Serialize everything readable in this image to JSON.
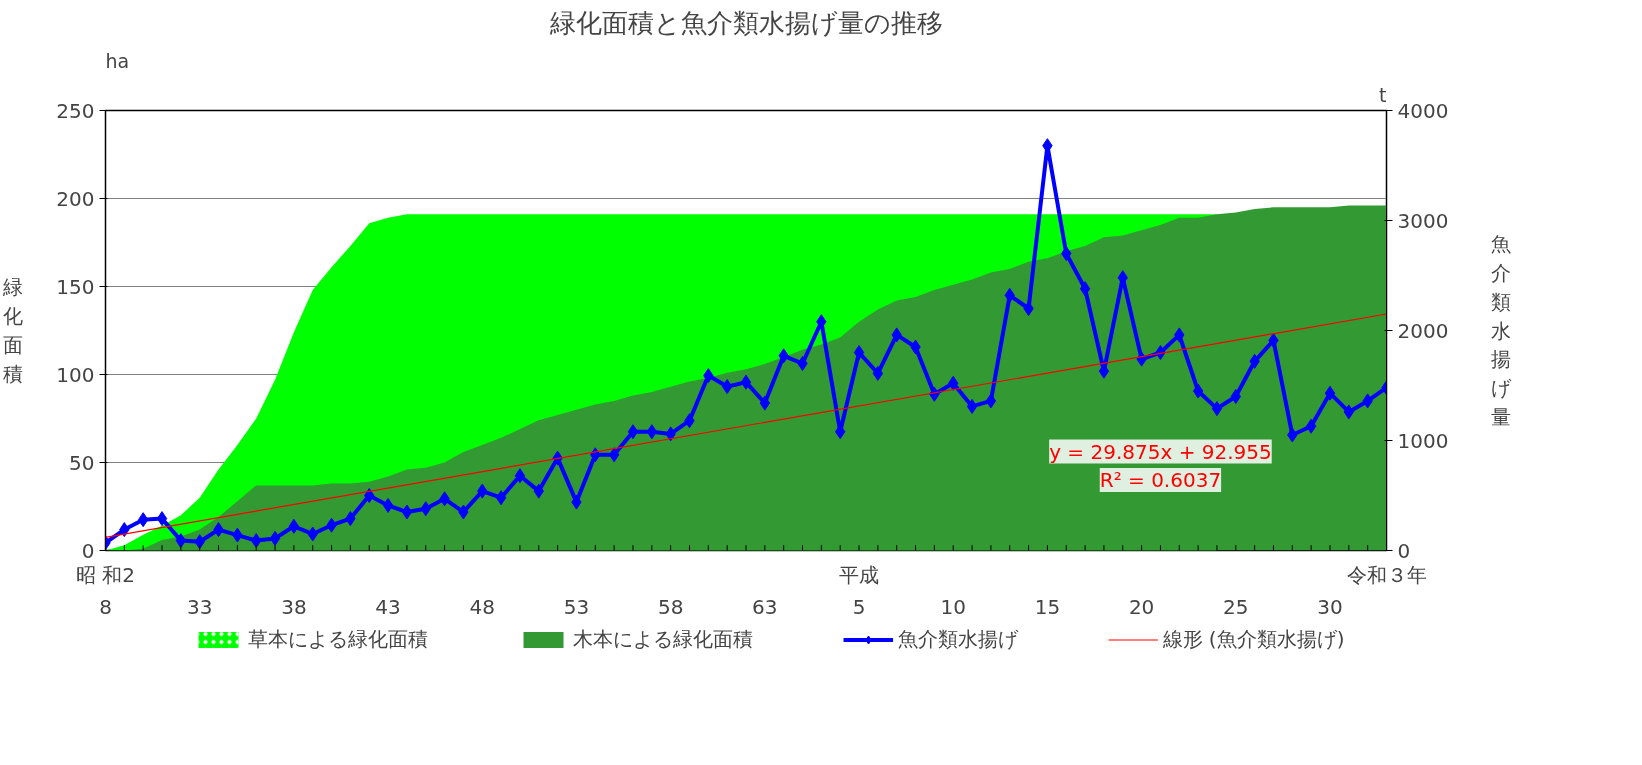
{
  "chart_data": {
    "type": "area",
    "title": "緑化面積と魚介類水揚げ量の推移",
    "ylabel": "緑化面積",
    "y2label": "魚介類水揚げ量",
    "categories": [
      "8",
      null,
      null,
      null,
      null,
      "33",
      null,
      null,
      null,
      null,
      "38",
      null,
      null,
      null,
      null,
      "43",
      null,
      null,
      null,
      null,
      "48",
      null,
      null,
      null,
      null,
      "53",
      null,
      null,
      null,
      null,
      "58",
      null,
      null,
      null,
      null,
      "63",
      null,
      null,
      null,
      null,
      "5",
      null,
      null,
      null,
      null,
      "10",
      null,
      null,
      null,
      null,
      "15",
      null,
      null,
      null,
      null,
      "20",
      null,
      null,
      null,
      null,
      "25",
      null,
      null,
      null,
      null,
      "30",
      null,
      null,
      null
    ],
    "series": [
      {
        "name": "草本による緑化面積",
        "color": "#00ff00",
        "values": [
          0,
          3,
          9,
          14,
          20,
          30,
          46,
          60,
          75,
          97,
          124,
          148,
          161,
          173,
          186,
          189,
          191,
          191,
          191,
          191,
          191,
          191,
          191,
          191,
          191,
          191,
          191,
          191,
          191,
          191,
          191,
          191,
          191,
          191,
          191,
          191,
          191,
          191,
          191,
          191,
          191,
          191,
          191,
          191,
          191,
          191,
          191,
          191,
          191,
          191,
          191,
          191,
          191,
          191,
          191,
          191,
          191,
          191,
          191,
          191,
          null,
          null,
          null,
          null,
          null,
          null,
          null,
          null,
          null
        ]
      },
      {
        "name": "木本による緑化面積",
        "color": "#339933",
        "values": [
          0,
          0,
          1,
          6,
          8,
          12,
          19,
          28,
          37,
          37,
          37,
          37,
          38,
          38,
          39,
          42,
          46,
          47,
          50,
          56,
          60,
          64,
          69,
          74,
          77,
          80,
          83,
          85,
          88,
          90,
          93,
          96,
          98,
          101,
          103,
          106,
          110,
          114,
          117,
          121,
          130,
          137,
          142,
          144,
          148,
          151,
          154,
          158,
          160,
          164,
          166,
          170,
          173,
          178,
          179,
          182,
          185,
          189,
          189,
          191,
          192,
          194,
          195,
          195,
          195,
          195,
          196,
          196,
          196
        ]
      },
      {
        "name": "魚介類水揚げ",
        "type": "line",
        "axis": "y2",
        "color": "#0000ff",
        "marker": "diamond",
        "values": [
          70,
          190,
          280,
          290,
          90,
          80,
          190,
          140,
          90,
          110,
          220,
          150,
          230,
          290,
          500,
          410,
          350,
          380,
          470,
          350,
          540,
          480,
          680,
          540,
          840,
          440,
          870,
          870,
          1080,
          1080,
          1060,
          1180,
          1590,
          1490,
          1530,
          1340,
          1770,
          1700,
          2080,
          1080,
          1800,
          1610,
          1960,
          1850,
          1420,
          1520,
          1310,
          1360,
          2320,
          2200,
          3680,
          2700,
          2380,
          1630,
          2480,
          1740,
          1800,
          1960,
          1450,
          1290,
          1400,
          1720,
          1910,
          1050,
          1130,
          1430,
          1260,
          1360,
          1480
        ]
      },
      {
        "name": "線形 (魚介類水揚げ)",
        "type": "line",
        "axis": "y2",
        "color": "#ff0000",
        "values": [
          120,
          null,
          null,
          null,
          null,
          null,
          null,
          null,
          null,
          null,
          null,
          null,
          null,
          null,
          null,
          null,
          null,
          null,
          null,
          null,
          null,
          null,
          null,
          null,
          null,
          null,
          null,
          null,
          null,
          null,
          null,
          null,
          null,
          null,
          null,
          null,
          null,
          null,
          null,
          null,
          null,
          null,
          null,
          null,
          null,
          null,
          null,
          null,
          null,
          null,
          null,
          null,
          null,
          null,
          null,
          null,
          null,
          null,
          null,
          null,
          null,
          null,
          null,
          null,
          null,
          null,
          null,
          null,
          2150
        ]
      }
    ],
    "ylim": [
      0,
      250
    ],
    "yticks": [
      0,
      50,
      100,
      150,
      200,
      250
    ],
    "y2lim": [
      0,
      4000
    ],
    "y2ticks": [
      0,
      1000,
      2000,
      3000,
      4000
    ],
    "grid": "y",
    "legend": "bottom",
    "annotations": [
      "昭 和2",
      "平成",
      "令和３年",
      "ha",
      "t",
      "y = 29.875x + 92.955",
      "R² = 0.6037"
    ]
  }
}
